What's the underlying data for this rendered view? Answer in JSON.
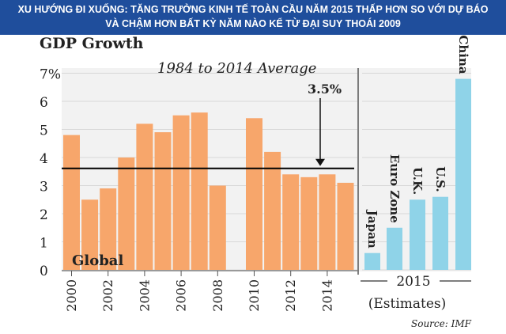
{
  "banner": {
    "line1": "XU HƯỚNG ĐI XUỐNG: TĂNG TRƯỞNG KINH TẾ TOÀN CẦU NĂM 2015 THẤP HƠN SO VỚI DỰ BÁO",
    "line2": "VÀ CHẬM HƠN BẤT KỲ NĂM NÀO KỂ TỪ ĐẠI SUY THOÁI 2009"
  },
  "colors": {
    "banner_bg": "#1f4e9c",
    "global_bars": "#f7a66b",
    "estimate_bars": "#8fd3e8",
    "panel_bg": "#f2f2f2",
    "avg_line": "#000000"
  },
  "chart_data": {
    "type": "bar",
    "title": "GDP Growth",
    "annotation": "1984 to 2014 Average",
    "average": {
      "value": 3.5,
      "label": "3.5%"
    },
    "ylim": [
      0,
      7
    ],
    "yticks": [
      {
        "value": 0,
        "label": "0"
      },
      {
        "value": 1,
        "label": "1"
      },
      {
        "value": 2,
        "label": "2"
      },
      {
        "value": 3,
        "label": "3"
      },
      {
        "value": 4,
        "label": "4"
      },
      {
        "value": 5,
        "label": "5"
      },
      {
        "value": 6,
        "label": "6"
      },
      {
        "value": 7,
        "label": "7%"
      }
    ],
    "series": [
      {
        "name": "Global",
        "x": [
          2000,
          2001,
          2002,
          2003,
          2004,
          2005,
          2006,
          2007,
          2008,
          2009,
          2010,
          2011,
          2012,
          2013,
          2014,
          2015
        ],
        "values": [
          4.8,
          2.5,
          2.9,
          4.0,
          5.2,
          4.9,
          5.5,
          5.6,
          3.0,
          null,
          5.4,
          4.2,
          3.4,
          3.3,
          3.4,
          3.1
        ]
      },
      {
        "name": "2015 (Estimates)",
        "categories": [
          "Japan",
          "Euro Zone",
          "U.K.",
          "U.S.",
          "China"
        ],
        "values": [
          0.6,
          1.5,
          2.5,
          2.6,
          6.8
        ]
      }
    ],
    "xtick_labels": [
      "2000",
      "2002",
      "2004",
      "2006",
      "2008",
      "2010",
      "2012",
      "2014"
    ],
    "estimates_label_year": "2015",
    "estimates_label_text": "(Estimates)",
    "series_label": "Global",
    "source": "Source: IMF",
    "grid": true
  }
}
